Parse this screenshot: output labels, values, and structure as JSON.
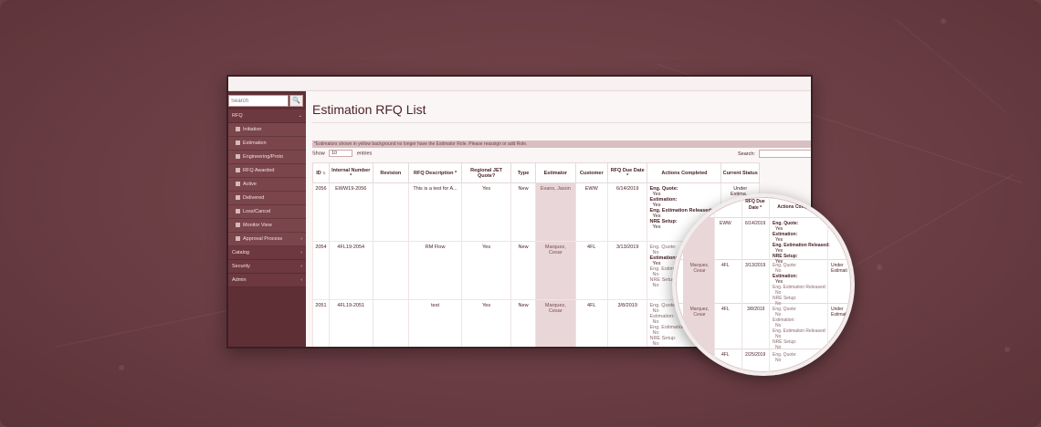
{
  "sidebar": {
    "search_placeholder": "Search",
    "search_button": "🔍",
    "items": [
      {
        "label": "RFQ",
        "caret": "⌄"
      },
      {
        "label": "Initiation"
      },
      {
        "label": "Estimation"
      },
      {
        "label": "Engineering/Proto"
      },
      {
        "label": "RFQ Awarded"
      },
      {
        "label": "Active"
      },
      {
        "label": "Delivered"
      },
      {
        "label": "Loss/Cancel"
      },
      {
        "label": "Monitor View"
      },
      {
        "label": "Approval Process",
        "caret": "‹"
      },
      {
        "label": "Catalog",
        "caret": "‹"
      },
      {
        "label": "Security",
        "caret": "‹"
      },
      {
        "label": "Admin",
        "caret": "‹"
      }
    ]
  },
  "main": {
    "title": "Estimation RFQ List",
    "notice": "*Estimators shown in yellow background no longer have the Estimator Role. Please reassign or add Role.",
    "show_label": "Show",
    "show_value": "10",
    "entries_label": "entries",
    "search_label": "Search:"
  },
  "table": {
    "headers": [
      "ID",
      "Internal Number *",
      "Revision",
      "RFQ Description *",
      "Regional JET Quote?",
      "Type",
      "Estimator",
      "Customer",
      "RFQ Due Date *",
      "Actions Completed",
      "Current Status"
    ],
    "rows": [
      {
        "id": "2056",
        "internal": "EWW19-2056",
        "revision": "",
        "description": "This is a test for A...",
        "jet": "Yes",
        "type": "New",
        "estimator": "Evans, Jason",
        "customer": "EWW",
        "due": "6/14/2019",
        "actions": [
          [
            "Eng. Quote:",
            "Yes"
          ],
          [
            "Estimation:",
            "Yes"
          ],
          [
            "Eng. Estimation Released:",
            "Yes"
          ],
          [
            "NRE Setup:",
            "Yes"
          ]
        ],
        "status": "Under Estima..."
      },
      {
        "id": "2054",
        "internal": "4FL19-2054",
        "revision": "",
        "description": "RM Flow",
        "jet": "Yes",
        "type": "New",
        "estimator": "Marquez, Cesar",
        "customer": "4FL",
        "due": "3/13/2019",
        "actions": [
          [
            "Eng. Quote:",
            "No"
          ],
          [
            "Estimation:",
            "Yes"
          ],
          [
            "Eng. Estimation Released:",
            "No"
          ],
          [
            "NRE Setup:",
            "No"
          ]
        ],
        "status": ""
      },
      {
        "id": "2051",
        "internal": "4FL19-2051",
        "revision": "",
        "description": "test",
        "jet": "Yes",
        "type": "New",
        "estimator": "Marquez, Cesar",
        "customer": "4FL",
        "due": "3/8/2019",
        "actions": [
          [
            "Eng. Quote:",
            "No"
          ],
          [
            "Estimation:",
            "No"
          ],
          [
            "Eng. Estimation Released:",
            "No"
          ],
          [
            "NRE Setup:",
            "No"
          ]
        ],
        "status": ""
      }
    ]
  },
  "magnifier": {
    "head_customer": "omer",
    "head_due": "RFQ Due Date *",
    "head_actions": "Actions Completed",
    "rows": [
      {
        "customer": "EWW",
        "due": "6/14/2019",
        "lines": [
          [
            "Eng. Quote:",
            "Yes"
          ],
          [
            "Estimation:",
            "Yes"
          ],
          [
            "Eng. Estimation Released:",
            "Yes"
          ],
          [
            "NRE Setup:",
            "Yes"
          ]
        ],
        "status": ""
      },
      {
        "estimator": "Marquez, Cesar",
        "customer": "4FL",
        "due": "3/13/2019",
        "lines": [
          [
            "Eng. Quote:",
            "No"
          ],
          [
            "Estimation:",
            "Yes"
          ],
          [
            "Eng. Estimation Released:",
            "No"
          ],
          [
            "NRE Setup:",
            "No"
          ]
        ],
        "status": "Under Estimati"
      },
      {
        "estimator": "Marquez, Cesar",
        "customer": "4FL",
        "due": "3/8/2019",
        "lines": [
          [
            "Eng. Quote:",
            "No"
          ],
          [
            "Estimation:",
            "No"
          ],
          [
            "Eng. Estimation Released:",
            "No"
          ],
          [
            "NRE Setup:",
            "No"
          ]
        ],
        "status": "Under Estimati"
      },
      {
        "customer": "4FL",
        "due": "2/25/2019",
        "lines": [
          [
            "Eng. Quote:",
            "No"
          ]
        ]
      }
    ],
    "buttons": [
      "⊕",
      "♟",
      "$"
    ]
  },
  "colors": {
    "background": "#6b3f45",
    "sidebar": "#5e2f35",
    "estimator_highlight": "#e9d6d8",
    "title": "#4a2227"
  }
}
